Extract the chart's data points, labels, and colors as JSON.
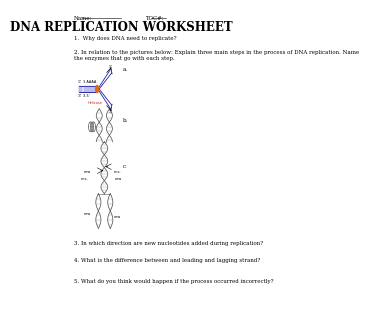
{
  "title": "DNA REPLICATION WORKSHEET",
  "name_label": "Name:",
  "topic_label": "TOC#:",
  "q1": "1.  Why does DNA need to replicate?",
  "q2": "2. In relation to the pictures below: Explain three main steps in the process of DNA replication. Name\nthe enzymes that go with each step.",
  "q2a": "a.",
  "q2b": "b.",
  "q2c": "c.",
  "q3": "3. In which direction are new nucleotides added during replication?",
  "q4": "4. What is the difference between and leading and lagging strand?",
  "q5": "5. What do you think would happen if the process occurred incorrectly?",
  "bg_color": "#ffffff",
  "text_color": "#000000",
  "title_font_size": 8.5,
  "body_font_size": 4.0,
  "small_font_size": 3.0
}
